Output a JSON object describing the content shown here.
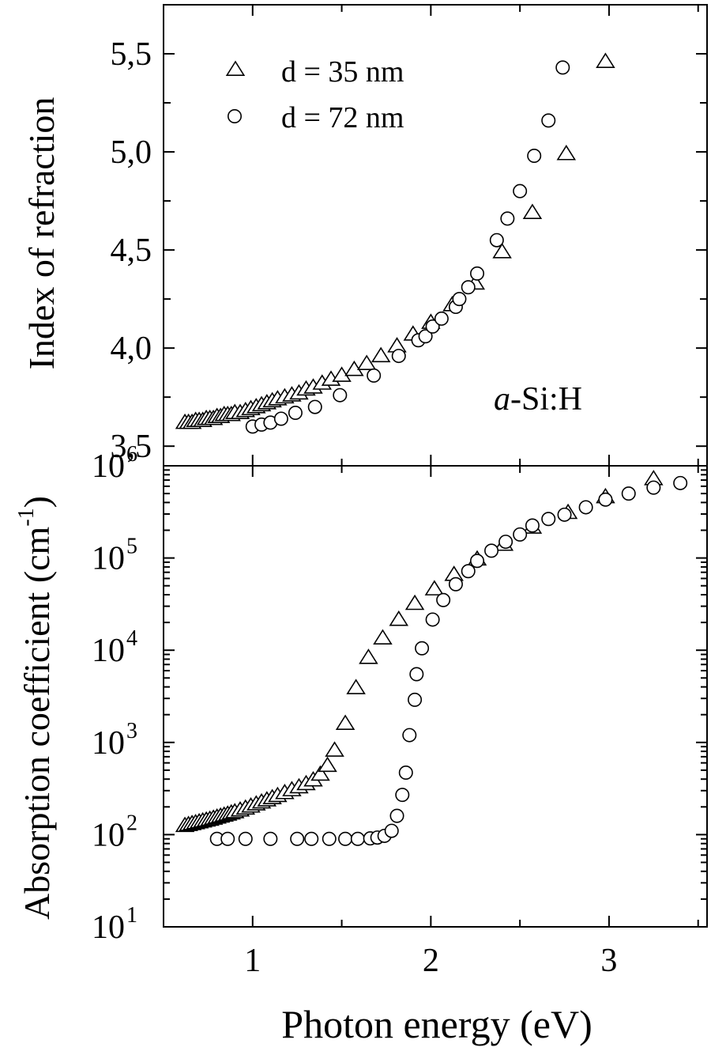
{
  "figure": {
    "xlabel": "Photon energy (eV)",
    "sample_label": {
      "italic": "a",
      "rest": "-Si:H"
    },
    "legend": [
      {
        "marker": "triangle",
        "label": "d = 35 nm"
      },
      {
        "marker": "circle",
        "label": "d = 72 nm"
      }
    ]
  },
  "chart_data": [
    {
      "type": "scatter",
      "panel": "top",
      "ylabel": "Index of refraction",
      "xlim": [
        0.5,
        3.55
      ],
      "ylim": [
        3.4,
        5.75
      ],
      "x_ticks": [
        1,
        2,
        3
      ],
      "y_ticks": [
        {
          "value": 3.5,
          "label": "3,5"
        },
        {
          "value": 4.0,
          "label": "4,0"
        },
        {
          "value": 4.5,
          "label": "4,5"
        },
        {
          "value": 5.0,
          "label": "5,0"
        },
        {
          "value": 5.5,
          "label": "5,5"
        }
      ],
      "legend_position": "top-left",
      "series": [
        {
          "name": "d = 35 nm",
          "marker": "triangle",
          "points": [
            [
              0.62,
              3.62
            ],
            [
              0.64,
              3.62
            ],
            [
              0.66,
              3.62
            ],
            [
              0.68,
              3.63
            ],
            [
              0.7,
              3.63
            ],
            [
              0.72,
              3.63
            ],
            [
              0.74,
              3.64
            ],
            [
              0.76,
              3.64
            ],
            [
              0.78,
              3.64
            ],
            [
              0.8,
              3.65
            ],
            [
              0.82,
              3.65
            ],
            [
              0.84,
              3.66
            ],
            [
              0.86,
              3.66
            ],
            [
              0.88,
              3.66
            ],
            [
              0.9,
              3.67
            ],
            [
              0.93,
              3.67
            ],
            [
              0.96,
              3.68
            ],
            [
              0.99,
              3.69
            ],
            [
              1.02,
              3.7
            ],
            [
              1.05,
              3.71
            ],
            [
              1.08,
              3.72
            ],
            [
              1.11,
              3.73
            ],
            [
              1.14,
              3.74
            ],
            [
              1.18,
              3.75
            ],
            [
              1.22,
              3.76
            ],
            [
              1.26,
              3.77
            ],
            [
              1.3,
              3.79
            ],
            [
              1.34,
              3.8
            ],
            [
              1.39,
              3.82
            ],
            [
              1.44,
              3.84
            ],
            [
              1.5,
              3.86
            ],
            [
              1.57,
              3.89
            ],
            [
              1.64,
              3.92
            ],
            [
              1.72,
              3.96
            ],
            [
              1.81,
              4.01
            ],
            [
              1.9,
              4.07
            ],
            [
              2.0,
              4.13
            ],
            [
              2.12,
              4.22
            ],
            [
              2.25,
              4.33
            ],
            [
              2.4,
              4.49
            ],
            [
              2.57,
              4.69
            ],
            [
              2.76,
              4.99
            ],
            [
              2.98,
              5.46
            ]
          ]
        },
        {
          "name": "d = 72 nm",
          "marker": "circle",
          "points": [
            [
              1.0,
              3.6
            ],
            [
              1.05,
              3.61
            ],
            [
              1.1,
              3.62
            ],
            [
              1.16,
              3.64
            ],
            [
              1.24,
              3.67
            ],
            [
              1.35,
              3.7
            ],
            [
              1.49,
              3.76
            ],
            [
              1.68,
              3.86
            ],
            [
              1.82,
              3.96
            ],
            [
              1.93,
              4.04
            ],
            [
              1.97,
              4.06
            ],
            [
              2.01,
              4.11
            ],
            [
              2.06,
              4.15
            ],
            [
              2.14,
              4.21
            ],
            [
              2.16,
              4.25
            ],
            [
              2.21,
              4.31
            ],
            [
              2.26,
              4.38
            ],
            [
              2.37,
              4.55
            ],
            [
              2.43,
              4.66
            ],
            [
              2.5,
              4.8
            ],
            [
              2.58,
              4.98
            ],
            [
              2.66,
              5.16
            ],
            [
              2.74,
              5.43
            ]
          ]
        }
      ]
    },
    {
      "type": "scatter",
      "panel": "bottom",
      "ylabel": "Absorption coefficient (cm-1)",
      "ylabel_parts": {
        "main": "Absorption coefficient (cm",
        "sup": "-1",
        "end": ")"
      },
      "y_scale": "log",
      "xlim": [
        0.5,
        3.55
      ],
      "ylim": [
        10,
        1000000
      ],
      "x_ticks": [
        1,
        2,
        3
      ],
      "y_ticks": [
        {
          "value": 10,
          "base": "10",
          "exp": "1"
        },
        {
          "value": 100,
          "base": "10",
          "exp": "2"
        },
        {
          "value": 1000,
          "base": "10",
          "exp": "3"
        },
        {
          "value": 10000,
          "base": "10",
          "exp": "4"
        },
        {
          "value": 100000,
          "base": "10",
          "exp": "5"
        },
        {
          "value": 1000000,
          "base": "10",
          "exp": "6"
        }
      ],
      "series": [
        {
          "name": "d = 35 nm",
          "marker": "triangle",
          "points": [
            [
              0.62,
              125
            ],
            [
              0.64,
              128
            ],
            [
              0.66,
              131
            ],
            [
              0.68,
              134
            ],
            [
              0.7,
              137
            ],
            [
              0.72,
              140
            ],
            [
              0.74,
              143
            ],
            [
              0.76,
              146
            ],
            [
              0.78,
              150
            ],
            [
              0.8,
              154
            ],
            [
              0.82,
              158
            ],
            [
              0.84,
              162
            ],
            [
              0.86,
              166
            ],
            [
              0.88,
              171
            ],
            [
              0.9,
              176
            ],
            [
              0.93,
              184
            ],
            [
              0.96,
              193
            ],
            [
              0.99,
              203
            ],
            [
              1.02,
              214
            ],
            [
              1.05,
              225
            ],
            [
              1.08,
              237
            ],
            [
              1.11,
              250
            ],
            [
              1.14,
              264
            ],
            [
              1.18,
              284
            ],
            [
              1.22,
              305
            ],
            [
              1.26,
              328
            ],
            [
              1.3,
              355
            ],
            [
              1.34,
              390
            ],
            [
              1.38,
              450
            ],
            [
              1.42,
              560
            ],
            [
              1.46,
              820
            ],
            [
              1.52,
              1600
            ],
            [
              1.58,
              3900
            ],
            [
              1.65,
              8300
            ],
            [
              1.73,
              13500
            ],
            [
              1.82,
              21500
            ],
            [
              1.91,
              32000
            ],
            [
              2.02,
              46000
            ],
            [
              2.13,
              66000
            ],
            [
              2.26,
              97000
            ],
            [
              2.41,
              140000
            ],
            [
              2.57,
              215000
            ],
            [
              2.77,
              310000
            ],
            [
              2.98,
              460000
            ],
            [
              3.25,
              720000
            ]
          ]
        },
        {
          "name": "d = 72 nm",
          "marker": "circle",
          "points": [
            [
              0.8,
              90
            ],
            [
              0.86,
              90
            ],
            [
              0.96,
              90
            ],
            [
              1.1,
              90
            ],
            [
              1.25,
              90
            ],
            [
              1.33,
              90
            ],
            [
              1.43,
              90
            ],
            [
              1.52,
              90
            ],
            [
              1.59,
              90
            ],
            [
              1.66,
              91
            ],
            [
              1.7,
              93
            ],
            [
              1.74,
              97
            ],
            [
              1.78,
              110
            ],
            [
              1.81,
              160
            ],
            [
              1.84,
              270
            ],
            [
              1.86,
              470
            ],
            [
              1.88,
              1200
            ],
            [
              1.91,
              2900
            ],
            [
              1.92,
              5500
            ],
            [
              1.95,
              10500
            ],
            [
              2.01,
              21500
            ],
            [
              2.07,
              35000
            ],
            [
              2.14,
              52000
            ],
            [
              2.21,
              72000
            ],
            [
              2.26,
              93000
            ],
            [
              2.34,
              120000
            ],
            [
              2.42,
              150000
            ],
            [
              2.5,
              180000
            ],
            [
              2.57,
              225000
            ],
            [
              2.66,
              265000
            ],
            [
              2.75,
              295000
            ],
            [
              2.87,
              355000
            ],
            [
              2.98,
              430000
            ],
            [
              3.11,
              500000
            ],
            [
              3.25,
              580000
            ],
            [
              3.4,
              650000
            ]
          ]
        }
      ]
    }
  ]
}
